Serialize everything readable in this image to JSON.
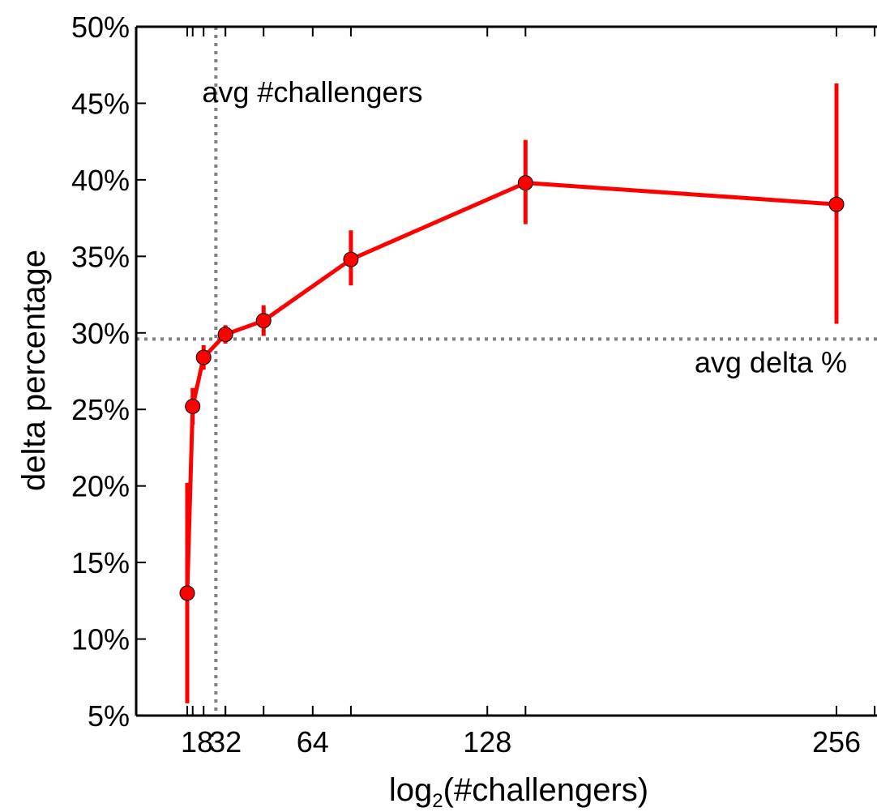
{
  "chart_data": {
    "type": "line",
    "xlabel": "log",
    "xlabel_sub": "2",
    "xlabel_rest": "(#challengers)",
    "ylabel": "delta percentage",
    "xlim": [
      0,
      256
    ],
    "ylim": [
      5,
      50
    ],
    "xticks": [
      {
        "value": 18,
        "label": "18"
      },
      {
        "value": 32,
        "label": "32"
      },
      {
        "value": 64,
        "label": "64"
      },
      {
        "value": 128,
        "label": "128"
      },
      {
        "value": 256,
        "label": "256"
      }
    ],
    "x_minor_ticks": [
      17,
      18,
      19
    ],
    "yticks": [
      {
        "value": 5,
        "label": "5%"
      },
      {
        "value": 10,
        "label": "10%"
      },
      {
        "value": 15,
        "label": "15%"
      },
      {
        "value": 20,
        "label": "20%"
      },
      {
        "value": 25,
        "label": "25%"
      },
      {
        "value": 30,
        "label": "30%"
      },
      {
        "value": 35,
        "label": "35%"
      },
      {
        "value": 40,
        "label": "40%"
      },
      {
        "value": 45,
        "label": "45%"
      },
      {
        "value": 50,
        "label": "50%"
      }
    ],
    "series": [
      {
        "color": "#ff0000",
        "points": [
          {
            "x": 18,
            "y": 13.0,
            "err_low": 5.8,
            "err_high": 20.2
          },
          {
            "x": 20,
            "y": 25.2,
            "err_low": 24.0,
            "err_high": 26.4
          },
          {
            "x": 24,
            "y": 28.4,
            "err_low": 27.6,
            "err_high": 29.2
          },
          {
            "x": 32,
            "y": 29.9,
            "err_low": 29.3,
            "err_high": 30.5
          },
          {
            "x": 46,
            "y": 30.8,
            "err_low": 29.8,
            "err_high": 31.8
          },
          {
            "x": 78,
            "y": 34.8,
            "err_low": 33.1,
            "err_high": 36.7
          },
          {
            "x": 142,
            "y": 39.8,
            "err_low": 37.1,
            "err_high": 42.6
          },
          {
            "x": 270,
            "y": 38.4,
            "err_low": 30.6,
            "err_high": 46.3
          }
        ]
      }
    ],
    "reference_lines": [
      {
        "orientation": "vertical",
        "value": 28.5,
        "label": "avg #challengers",
        "color": "#808080"
      },
      {
        "orientation": "horizontal",
        "value": 29.6,
        "label": "avg delta %",
        "color": "#808080"
      }
    ]
  }
}
